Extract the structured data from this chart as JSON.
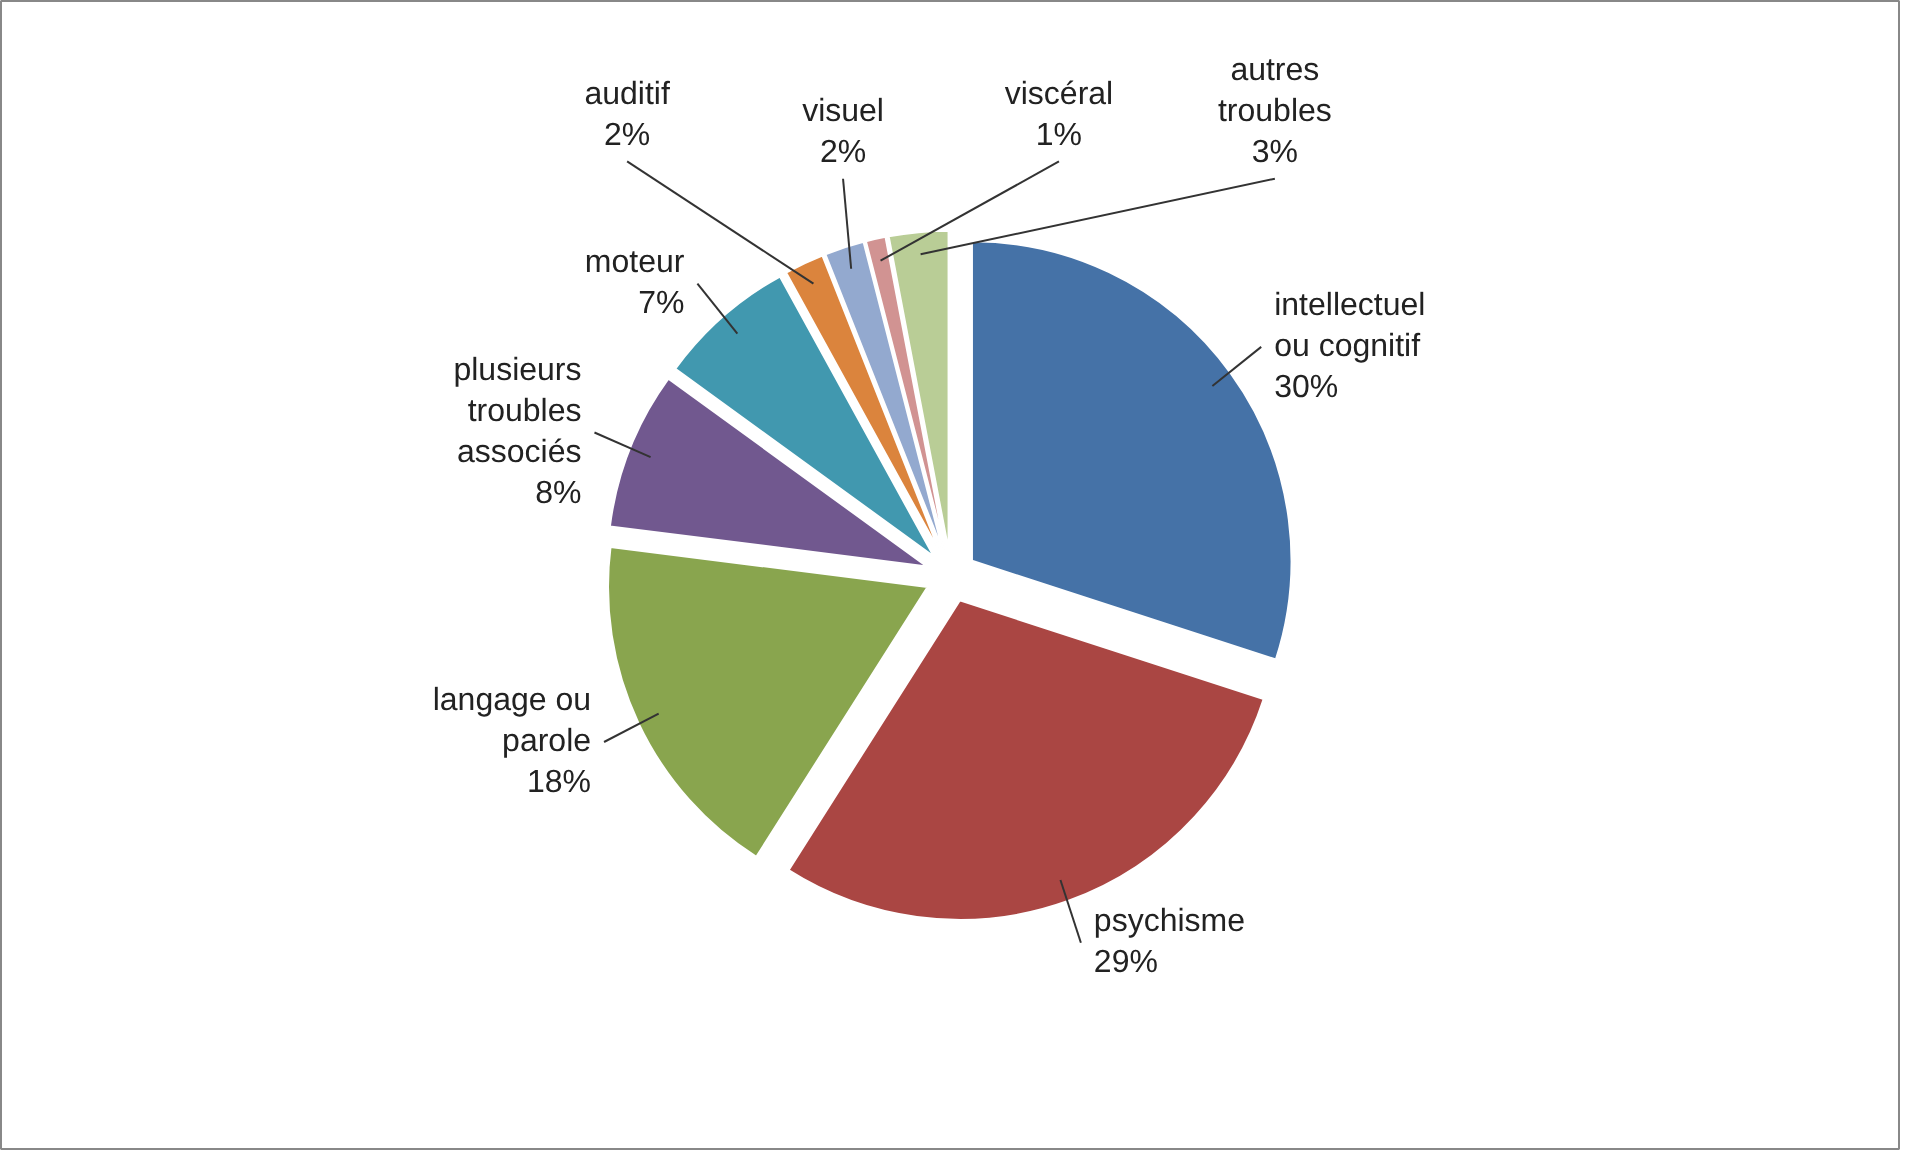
{
  "chart_data": {
    "type": "pie",
    "categories": [
      "intellectuel ou cognitif",
      "psychisme",
      "langage ou parole",
      "plusieurs troubles associés",
      "moteur",
      "auditif",
      "visuel",
      "viscéral",
      "autres troubles"
    ],
    "values": [
      30,
      29,
      18,
      8,
      7,
      2,
      2,
      1,
      3
    ],
    "value_labels": [
      "30%",
      "29%",
      "18%",
      "8%",
      "7%",
      "2%",
      "2%",
      "1%",
      "3%"
    ],
    "colors": [
      "#4572a7",
      "#aa4643",
      "#89a54e",
      "#71588f",
      "#4198af",
      "#db843d",
      "#93a9cf",
      "#d19392",
      "#b9cd96"
    ],
    "legend": false
  }
}
